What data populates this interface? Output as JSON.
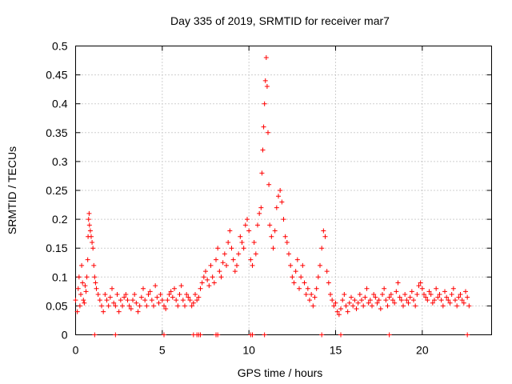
{
  "chart_data": {
    "type": "scatter",
    "title": "Day 335 of 2019, SRMTID for receiver mar7",
    "xlabel": "GPS time / hours",
    "ylabel": "SRMTID / TECUs",
    "xlim": [
      0,
      24
    ],
    "ylim": [
      0,
      0.5
    ],
    "xticks": [
      0,
      5,
      10,
      15,
      20
    ],
    "yticks": [
      0,
      0.05,
      0.1,
      0.15,
      0.2,
      0.25,
      0.3,
      0.35,
      0.4,
      0.45,
      0.5
    ],
    "x_tick_labels": [
      "0",
      "5",
      "10",
      "15",
      "20"
    ],
    "y_tick_labels": [
      "0",
      "0.05",
      "0.1",
      "0.15",
      "0.2",
      "0.25",
      "0.3",
      "0.35",
      "0.4",
      "0.45",
      "0.5"
    ],
    "grid": true,
    "marker": "+",
    "color": "#ff0000",
    "series": [
      {
        "name": "SRMTID",
        "points": [
          [
            0.0,
            0.06
          ],
          [
            0.1,
            0.04
          ],
          [
            0.15,
            0.08
          ],
          [
            0.2,
            0.1
          ],
          [
            0.25,
            0.05
          ],
          [
            0.3,
            0.07
          ],
          [
            0.35,
            0.12
          ],
          [
            0.4,
            0.09
          ],
          [
            0.45,
            0.06
          ],
          [
            0.5,
            0.055
          ],
          [
            0.55,
            0.085
          ],
          [
            0.6,
            0.075
          ],
          [
            0.65,
            0.1
          ],
          [
            0.7,
            0.13
          ],
          [
            0.72,
            0.17
          ],
          [
            0.75,
            0.2
          ],
          [
            0.78,
            0.21
          ],
          [
            0.8,
            0.19
          ],
          [
            0.85,
            0.18
          ],
          [
            0.9,
            0.17
          ],
          [
            0.95,
            0.16
          ],
          [
            1.0,
            0.15
          ],
          [
            1.05,
            0.12
          ],
          [
            1.1,
            0.1
          ],
          [
            1.15,
            0.09
          ],
          [
            1.2,
            0.08
          ],
          [
            1.3,
            0.07
          ],
          [
            1.4,
            0.06
          ],
          [
            1.5,
            0.05
          ],
          [
            1.6,
            0.04
          ],
          [
            1.7,
            0.07
          ],
          [
            1.8,
            0.06
          ],
          [
            1.9,
            0.05
          ],
          [
            2.0,
            0.065
          ],
          [
            2.1,
            0.08
          ],
          [
            2.2,
            0.055
          ],
          [
            2.3,
            0.05
          ],
          [
            2.4,
            0.07
          ],
          [
            2.5,
            0.04
          ],
          [
            2.6,
            0.06
          ],
          [
            2.7,
            0.05
          ],
          [
            2.8,
            0.065
          ],
          [
            2.9,
            0.07
          ],
          [
            3.0,
            0.06
          ],
          [
            3.1,
            0.05
          ],
          [
            3.2,
            0.045
          ],
          [
            3.3,
            0.06
          ],
          [
            3.4,
            0.07
          ],
          [
            3.5,
            0.055
          ],
          [
            3.6,
            0.04
          ],
          [
            3.7,
            0.05
          ],
          [
            3.8,
            0.065
          ],
          [
            3.9,
            0.08
          ],
          [
            4.0,
            0.06
          ],
          [
            4.1,
            0.05
          ],
          [
            4.2,
            0.07
          ],
          [
            4.3,
            0.075
          ],
          [
            4.4,
            0.06
          ],
          [
            4.5,
            0.05
          ],
          [
            4.6,
            0.085
          ],
          [
            4.7,
            0.065
          ],
          [
            4.8,
            0.055
          ],
          [
            4.9,
            0.07
          ],
          [
            5.0,
            0.06
          ],
          [
            5.1,
            0.05
          ],
          [
            5.2,
            0.045
          ],
          [
            5.3,
            0.06
          ],
          [
            5.4,
            0.07
          ],
          [
            5.5,
            0.075
          ],
          [
            5.6,
            0.065
          ],
          [
            5.7,
            0.08
          ],
          [
            5.8,
            0.06
          ],
          [
            5.9,
            0.05
          ],
          [
            6.0,
            0.07
          ],
          [
            6.1,
            0.085
          ],
          [
            6.2,
            0.06
          ],
          [
            6.3,
            0.05
          ],
          [
            6.4,
            0.07
          ],
          [
            6.5,
            0.065
          ],
          [
            6.6,
            0.06
          ],
          [
            6.7,
            0.05
          ],
          [
            6.8,
            0.055
          ],
          [
            6.9,
            0.07
          ],
          [
            7.0,
            0.06
          ],
          [
            7.1,
            0.065
          ],
          [
            7.2,
            0.08
          ],
          [
            7.3,
            0.09
          ],
          [
            7.4,
            0.1
          ],
          [
            7.5,
            0.11
          ],
          [
            7.6,
            0.095
          ],
          [
            7.7,
            0.085
          ],
          [
            7.8,
            0.12
          ],
          [
            7.9,
            0.1
          ],
          [
            8.0,
            0.09
          ],
          [
            8.1,
            0.13
          ],
          [
            8.2,
            0.15
          ],
          [
            8.3,
            0.11
          ],
          [
            8.4,
            0.1
          ],
          [
            8.5,
            0.125
          ],
          [
            8.6,
            0.14
          ],
          [
            8.7,
            0.12
          ],
          [
            8.8,
            0.16
          ],
          [
            8.9,
            0.18
          ],
          [
            9.0,
            0.15
          ],
          [
            9.1,
            0.13
          ],
          [
            9.2,
            0.11
          ],
          [
            9.3,
            0.12
          ],
          [
            9.4,
            0.14
          ],
          [
            9.5,
            0.17
          ],
          [
            9.6,
            0.16
          ],
          [
            9.7,
            0.15
          ],
          [
            9.8,
            0.19
          ],
          [
            9.9,
            0.2
          ],
          [
            10.0,
            0.18
          ],
          [
            10.1,
            0.13
          ],
          [
            10.2,
            0.12
          ],
          [
            10.3,
            0.16
          ],
          [
            10.4,
            0.14
          ],
          [
            10.5,
            0.19
          ],
          [
            10.6,
            0.21
          ],
          [
            10.7,
            0.22
          ],
          [
            10.75,
            0.28
          ],
          [
            10.8,
            0.32
          ],
          [
            10.85,
            0.36
          ],
          [
            10.9,
            0.4
          ],
          [
            10.95,
            0.44
          ],
          [
            11.0,
            0.48
          ],
          [
            11.05,
            0.43
          ],
          [
            11.1,
            0.35
          ],
          [
            11.15,
            0.26
          ],
          [
            11.2,
            0.19
          ],
          [
            11.3,
            0.17
          ],
          [
            11.4,
            0.15
          ],
          [
            11.5,
            0.18
          ],
          [
            11.6,
            0.22
          ],
          [
            11.7,
            0.24
          ],
          [
            11.8,
            0.25
          ],
          [
            11.9,
            0.23
          ],
          [
            12.0,
            0.2
          ],
          [
            12.1,
            0.17
          ],
          [
            12.2,
            0.16
          ],
          [
            12.3,
            0.14
          ],
          [
            12.4,
            0.12
          ],
          [
            12.5,
            0.1
          ],
          [
            12.6,
            0.09
          ],
          [
            12.7,
            0.11
          ],
          [
            12.8,
            0.13
          ],
          [
            12.9,
            0.08
          ],
          [
            13.0,
            0.1
          ],
          [
            13.1,
            0.12
          ],
          [
            13.2,
            0.09
          ],
          [
            13.3,
            0.07
          ],
          [
            13.4,
            0.08
          ],
          [
            13.5,
            0.06
          ],
          [
            13.6,
            0.07
          ],
          [
            13.7,
            0.05
          ],
          [
            13.8,
            0.065
          ],
          [
            13.9,
            0.08
          ],
          [
            14.0,
            0.1
          ],
          [
            14.1,
            0.12
          ],
          [
            14.2,
            0.15
          ],
          [
            14.3,
            0.18
          ],
          [
            14.4,
            0.17
          ],
          [
            14.5,
            0.11
          ],
          [
            14.6,
            0.09
          ],
          [
            14.7,
            0.07
          ],
          [
            14.8,
            0.06
          ],
          [
            14.9,
            0.05
          ],
          [
            15.0,
            0.055
          ],
          [
            15.1,
            0.04
          ],
          [
            15.2,
            0.035
          ],
          [
            15.3,
            0.045
          ],
          [
            15.4,
            0.06
          ],
          [
            15.5,
            0.07
          ],
          [
            15.6,
            0.05
          ],
          [
            15.7,
            0.04
          ],
          [
            15.8,
            0.055
          ],
          [
            15.9,
            0.065
          ],
          [
            16.0,
            0.05
          ],
          [
            16.1,
            0.06
          ],
          [
            16.2,
            0.045
          ],
          [
            16.3,
            0.055
          ],
          [
            16.4,
            0.07
          ],
          [
            16.5,
            0.06
          ],
          [
            16.6,
            0.05
          ],
          [
            16.7,
            0.065
          ],
          [
            16.8,
            0.08
          ],
          [
            16.9,
            0.055
          ],
          [
            17.0,
            0.06
          ],
          [
            17.1,
            0.05
          ],
          [
            17.2,
            0.07
          ],
          [
            17.3,
            0.065
          ],
          [
            17.4,
            0.055
          ],
          [
            17.5,
            0.06
          ],
          [
            17.6,
            0.045
          ],
          [
            17.7,
            0.07
          ],
          [
            17.8,
            0.08
          ],
          [
            17.9,
            0.06
          ],
          [
            18.0,
            0.05
          ],
          [
            18.1,
            0.065
          ],
          [
            18.2,
            0.07
          ],
          [
            18.3,
            0.06
          ],
          [
            18.4,
            0.055
          ],
          [
            18.5,
            0.075
          ],
          [
            18.6,
            0.09
          ],
          [
            18.7,
            0.065
          ],
          [
            18.8,
            0.06
          ],
          [
            18.9,
            0.05
          ],
          [
            19.0,
            0.07
          ],
          [
            19.1,
            0.06
          ],
          [
            19.2,
            0.055
          ],
          [
            19.3,
            0.065
          ],
          [
            19.4,
            0.075
          ],
          [
            19.5,
            0.06
          ],
          [
            19.6,
            0.05
          ],
          [
            19.7,
            0.07
          ],
          [
            19.8,
            0.085
          ],
          [
            19.9,
            0.09
          ],
          [
            20.0,
            0.08
          ],
          [
            20.1,
            0.07
          ],
          [
            20.2,
            0.065
          ],
          [
            20.3,
            0.06
          ],
          [
            20.4,
            0.075
          ],
          [
            20.5,
            0.07
          ],
          [
            20.6,
            0.055
          ],
          [
            20.7,
            0.06
          ],
          [
            20.8,
            0.08
          ],
          [
            20.9,
            0.065
          ],
          [
            21.0,
            0.07
          ],
          [
            21.1,
            0.06
          ],
          [
            21.2,
            0.05
          ],
          [
            21.3,
            0.075
          ],
          [
            21.4,
            0.065
          ],
          [
            21.5,
            0.06
          ],
          [
            21.6,
            0.055
          ],
          [
            21.7,
            0.07
          ],
          [
            21.8,
            0.08
          ],
          [
            21.9,
            0.06
          ],
          [
            22.0,
            0.05
          ],
          [
            22.1,
            0.065
          ],
          [
            22.2,
            0.07
          ],
          [
            22.3,
            0.06
          ],
          [
            22.4,
            0.055
          ],
          [
            22.5,
            0.075
          ],
          [
            22.6,
            0.065
          ],
          [
            22.7,
            0.05
          ],
          [
            1.1,
            0.0
          ],
          [
            2.3,
            0.0
          ],
          [
            5.1,
            0.0
          ],
          [
            6.8,
            0.0
          ],
          [
            7.0,
            0.0
          ],
          [
            7.1,
            0.0
          ],
          [
            7.2,
            0.0
          ],
          [
            8.1,
            0.0
          ],
          [
            8.2,
            0.0
          ],
          [
            10.1,
            0.0
          ],
          [
            10.2,
            0.0
          ],
          [
            10.9,
            0.0
          ],
          [
            14.2,
            0.0
          ],
          [
            15.3,
            0.0
          ],
          [
            18.1,
            0.0
          ],
          [
            22.6,
            0.0
          ]
        ]
      }
    ]
  }
}
